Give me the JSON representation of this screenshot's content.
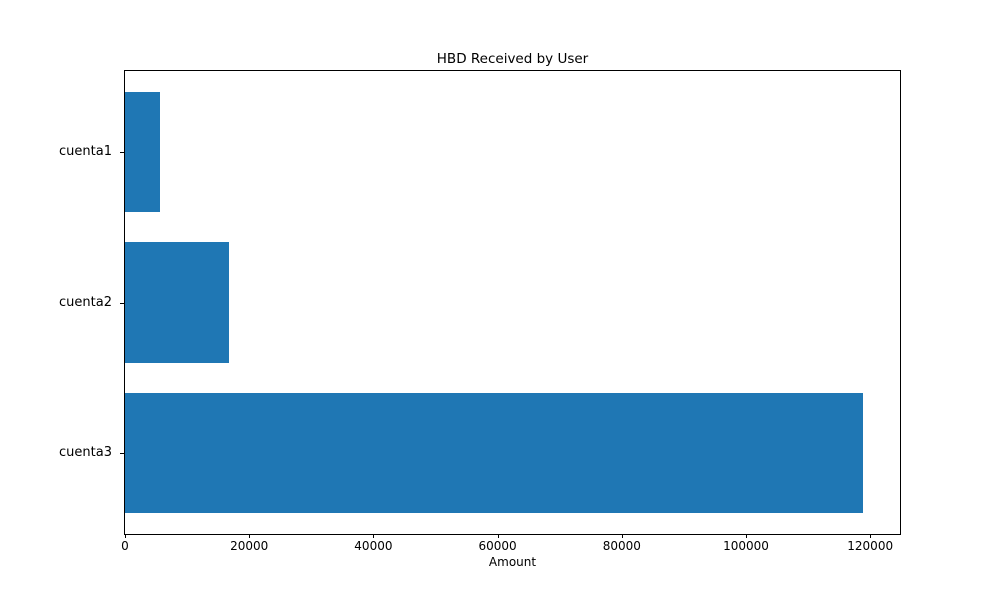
{
  "chart_data": {
    "type": "bar",
    "orientation": "horizontal",
    "title": "HBD Received by User",
    "xlabel": "Amount",
    "ylabel": "",
    "categories": [
      "cuenta1",
      "cuenta2",
      "cuenta3"
    ],
    "values": [
      5600,
      16700,
      118800
    ],
    "xlim": [
      0,
      124800
    ],
    "xticks": [
      0,
      20000,
      40000,
      60000,
      80000,
      100000,
      120000
    ],
    "xtick_labels": [
      "0",
      "20000",
      "40000",
      "60000",
      "80000",
      "100000",
      "120000"
    ],
    "bar_color": "#1f77b4",
    "background_color": "#ffffff",
    "text_color": "#000000",
    "grid": false,
    "legend_position": "none"
  }
}
